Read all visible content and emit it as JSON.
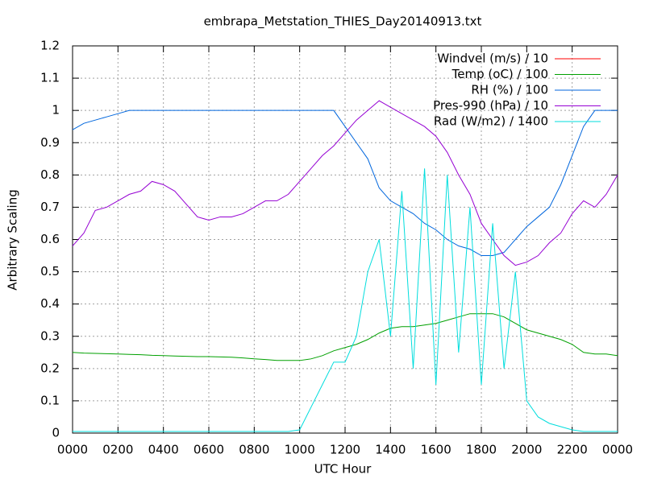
{
  "chart_data": {
    "type": "line",
    "title": "embrapa_Metstation_THIES_Day20140913.txt",
    "x_label": "UTC Hour",
    "y_label": "Arbitrary Scaling",
    "x": [
      0,
      0.5,
      1,
      1.5,
      2,
      2.5,
      3,
      3.5,
      4,
      4.5,
      5,
      5.5,
      6,
      6.5,
      7,
      7.5,
      8,
      8.5,
      9,
      9.5,
      10,
      10.5,
      11,
      11.5,
      12,
      12.5,
      13,
      13.5,
      14,
      14.5,
      15,
      15.5,
      16,
      16.5,
      17,
      17.5,
      18,
      18.5,
      19,
      19.5,
      20,
      20.5,
      21,
      21.5,
      22,
      22.5,
      23,
      23.5,
      24
    ],
    "xlim": [
      0,
      24
    ],
    "xticks": [
      {
        "value": 0,
        "label": "0000"
      },
      {
        "value": 2,
        "label": "0200"
      },
      {
        "value": 4,
        "label": "0400"
      },
      {
        "value": 6,
        "label": "0600"
      },
      {
        "value": 8,
        "label": "0800"
      },
      {
        "value": 10,
        "label": "1000"
      },
      {
        "value": 12,
        "label": "1200"
      },
      {
        "value": 14,
        "label": "1400"
      },
      {
        "value": 16,
        "label": "1600"
      },
      {
        "value": 18,
        "label": "1800"
      },
      {
        "value": 20,
        "label": "2000"
      },
      {
        "value": 22,
        "label": "2200"
      },
      {
        "value": 24,
        "label": "0000"
      }
    ],
    "ylim": [
      0,
      1.2
    ],
    "yticks": [
      0,
      0.1,
      0.2,
      0.3,
      0.4,
      0.5,
      0.6,
      0.7,
      0.8,
      0.9,
      1,
      1.1,
      1.2
    ],
    "grid": true,
    "legend": "top-right",
    "series": [
      {
        "name": "Windvel (m/s) / 10",
        "color": "#ff0000",
        "values": [
          null,
          null,
          null,
          null,
          null,
          null,
          null,
          null,
          null,
          null,
          null,
          null,
          null,
          null,
          null,
          null,
          null,
          null,
          null,
          null,
          null,
          null,
          null,
          null,
          null,
          null,
          null,
          null,
          null,
          null,
          null,
          null,
          null,
          null,
          null,
          null,
          null,
          null,
          null,
          null,
          null,
          null,
          null,
          null,
          null,
          null,
          null,
          null,
          null
        ]
      },
      {
        "name": "Temp (oC) / 100",
        "color": "#00a000",
        "values": [
          0.25,
          0.248,
          0.247,
          0.246,
          0.245,
          0.244,
          0.243,
          0.241,
          0.24,
          0.239,
          0.238,
          0.237,
          0.237,
          0.236,
          0.235,
          0.233,
          0.23,
          0.228,
          0.225,
          0.225,
          0.225,
          0.23,
          0.24,
          0.255,
          0.265,
          0.275,
          0.29,
          0.31,
          0.325,
          0.33,
          0.33,
          0.335,
          0.34,
          0.35,
          0.36,
          0.37,
          0.37,
          0.37,
          0.36,
          0.34,
          0.32,
          0.31,
          0.3,
          0.29,
          0.275,
          0.25,
          0.245,
          0.245,
          0.24
        ]
      },
      {
        "name": "RH (%) / 100",
        "color": "#0066dd",
        "values": [
          0.94,
          0.96,
          0.97,
          0.98,
          0.99,
          1,
          1,
          1,
          1,
          1,
          1,
          1,
          1,
          1,
          1,
          1,
          1,
          1,
          1,
          1,
          1,
          1,
          1,
          1,
          0.95,
          0.9,
          0.85,
          0.76,
          0.72,
          0.7,
          0.68,
          0.65,
          0.63,
          0.6,
          0.58,
          0.57,
          0.55,
          0.55,
          0.56,
          0.6,
          0.64,
          0.67,
          0.7,
          0.77,
          0.86,
          0.95,
          1,
          1,
          1
        ]
      },
      {
        "name": "Pres-990 (hPa) / 10",
        "color": "#9500d3",
        "values": [
          0.58,
          0.62,
          0.69,
          0.7,
          0.72,
          0.74,
          0.75,
          0.78,
          0.77,
          0.75,
          0.71,
          0.67,
          0.66,
          0.67,
          0.67,
          0.68,
          0.7,
          0.72,
          0.72,
          0.74,
          0.78,
          0.82,
          0.86,
          0.89,
          0.93,
          0.97,
          1,
          1.03,
          1.01,
          0.99,
          0.97,
          0.95,
          0.92,
          0.87,
          0.8,
          0.74,
          0.65,
          0.6,
          0.55,
          0.52,
          0.53,
          0.55,
          0.59,
          0.62,
          0.68,
          0.72,
          0.7,
          0.74,
          0.8
        ]
      },
      {
        "name": "Rad (W/m2) / 1400",
        "color": "#00dddd",
        "values": [
          0.005,
          0.005,
          0.005,
          0.005,
          0.005,
          0.005,
          0.005,
          0.005,
          0.005,
          0.005,
          0.005,
          0.005,
          0.005,
          0.005,
          0.005,
          0.005,
          0.005,
          0.005,
          0.005,
          0.005,
          0.01,
          0.08,
          0.15,
          0.22,
          0.22,
          0.3,
          0.5,
          0.6,
          0.3,
          0.75,
          0.2,
          0.82,
          0.15,
          0.8,
          0.25,
          0.7,
          0.15,
          0.65,
          0.2,
          0.5,
          0.1,
          0.05,
          0.03,
          0.02,
          0.01,
          0.005,
          0.005,
          0.005,
          0.005
        ]
      }
    ]
  }
}
